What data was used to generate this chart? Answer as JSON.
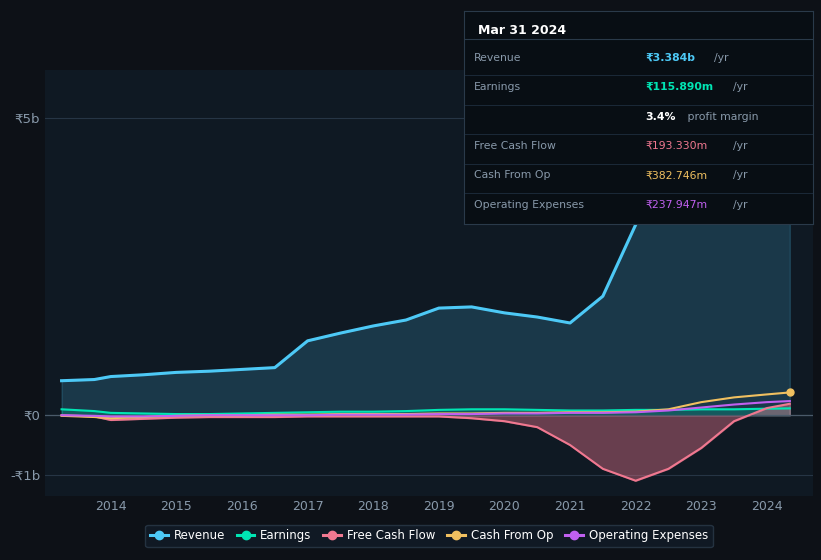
{
  "background_color": "#0d1117",
  "plot_bg_color": "#0f1923",
  "years": [
    2013.25,
    2013.75,
    2014,
    2014.5,
    2015,
    2015.5,
    2016,
    2016.5,
    2017,
    2017.5,
    2018,
    2018.5,
    2019,
    2019.5,
    2020,
    2020.5,
    2021,
    2021.5,
    2022,
    2022.5,
    2023,
    2023.5,
    2024,
    2024.35
  ],
  "revenue": [
    0.58,
    0.6,
    0.65,
    0.68,
    0.72,
    0.74,
    0.77,
    0.8,
    1.25,
    1.38,
    1.5,
    1.6,
    1.8,
    1.82,
    1.72,
    1.65,
    1.55,
    2.0,
    3.2,
    4.2,
    4.7,
    4.1,
    3.4,
    3.384
  ],
  "earnings": [
    0.1,
    0.07,
    0.04,
    0.03,
    0.02,
    0.02,
    0.03,
    0.04,
    0.05,
    0.06,
    0.06,
    0.07,
    0.09,
    0.1,
    0.1,
    0.09,
    0.08,
    0.08,
    0.09,
    0.09,
    0.1,
    0.1,
    0.11,
    0.116
  ],
  "free_cash_flow": [
    0.0,
    -0.02,
    -0.08,
    -0.06,
    -0.04,
    -0.03,
    -0.03,
    -0.03,
    -0.02,
    -0.02,
    -0.02,
    -0.02,
    -0.02,
    -0.05,
    -0.1,
    -0.2,
    -0.5,
    -0.9,
    -1.1,
    -0.9,
    -0.55,
    -0.1,
    0.12,
    0.193
  ],
  "cash_from_op": [
    -0.01,
    -0.03,
    -0.05,
    -0.03,
    -0.01,
    0.0,
    0.0,
    0.01,
    0.01,
    0.02,
    0.02,
    0.02,
    0.03,
    0.03,
    0.04,
    0.04,
    0.05,
    0.05,
    0.06,
    0.1,
    0.22,
    0.3,
    0.35,
    0.383
  ],
  "operating_exp": [
    0.0,
    -0.01,
    -0.02,
    -0.02,
    -0.01,
    0.0,
    0.0,
    0.0,
    0.0,
    0.01,
    0.01,
    0.01,
    0.02,
    0.02,
    0.03,
    0.03,
    0.04,
    0.04,
    0.05,
    0.08,
    0.13,
    0.18,
    0.22,
    0.238
  ],
  "revenue_color": "#4dc9f6",
  "earnings_color": "#00e5b4",
  "fcf_color": "#f07890",
  "cashop_color": "#f0c060",
  "opexp_color": "#c060f0",
  "ylim": [
    -1.35,
    5.8
  ],
  "yticks": [
    -1,
    0,
    5
  ],
  "ytick_labels": [
    "-₹1b",
    "₹0",
    "₹5b"
  ],
  "xlim": [
    2013.0,
    2024.7
  ],
  "xtick_years": [
    2014,
    2015,
    2016,
    2017,
    2018,
    2019,
    2020,
    2021,
    2022,
    2023,
    2024
  ],
  "info_box_title": "Mar 31 2024",
  "info_rows": [
    {
      "label": "Revenue",
      "value": "₹3.384b",
      "suffix": "/yr",
      "vcolor": "#4dc9f6",
      "bold": true
    },
    {
      "label": "Earnings",
      "value": "₹115.890m",
      "suffix": "/yr",
      "vcolor": "#00e5b4",
      "bold": true
    },
    {
      "label": "",
      "value": "3.4%",
      "suffix": " profit margin",
      "vcolor": "#ffffff",
      "bold": true,
      "suffix_color": "#ffffff"
    },
    {
      "label": "Free Cash Flow",
      "value": "₹193.330m",
      "suffix": "/yr",
      "vcolor": "#f07890",
      "bold": false
    },
    {
      "label": "Cash From Op",
      "value": "₹382.746m",
      "suffix": "/yr",
      "vcolor": "#f0c060",
      "bold": false
    },
    {
      "label": "Operating Expenses",
      "value": "₹237.947m",
      "suffix": "/yr",
      "vcolor": "#c060f0",
      "bold": false
    }
  ],
  "legend": [
    {
      "label": "Revenue",
      "color": "#4dc9f6"
    },
    {
      "label": "Earnings",
      "color": "#00e5b4"
    },
    {
      "label": "Free Cash Flow",
      "color": "#f07890"
    },
    {
      "label": "Cash From Op",
      "color": "#f0c060"
    },
    {
      "label": "Operating Expenses",
      "color": "#c060f0"
    }
  ]
}
